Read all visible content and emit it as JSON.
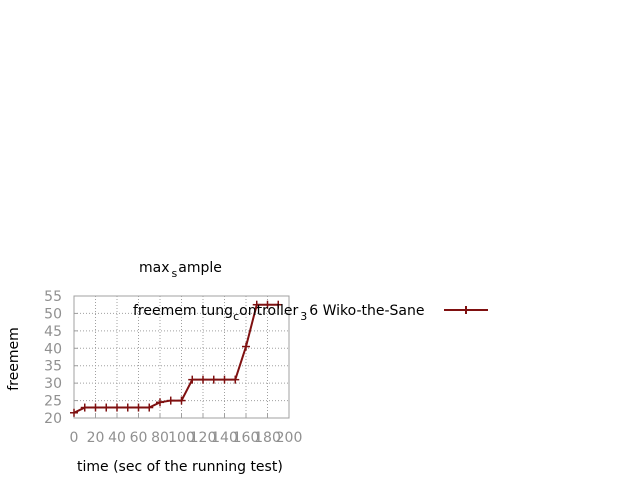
{
  "chart_data": {
    "type": "line",
    "title_main": "max",
    "title_sub": "s",
    "title_rest": "ample",
    "xlabel": "time (sec of the running test)",
    "ylabel": "freemem",
    "xlim": [
      0,
      200
    ],
    "ylim": [
      20,
      55
    ],
    "x_ticks": [
      0,
      20,
      40,
      60,
      80,
      100,
      120,
      140,
      160,
      180,
      200
    ],
    "y_ticks": [
      20,
      25,
      30,
      35,
      40,
      45,
      50,
      55
    ],
    "grid": true,
    "legend_position": "top-right",
    "legend": {
      "part1": "freemem tung",
      "sub1": "c",
      "part2": "ontroller",
      "sub2": "3",
      "part3": "6 Wiko-the-Sane"
    },
    "series": [
      {
        "color": "#7f1010",
        "x": [
          0,
          10,
          20,
          30,
          40,
          50,
          60,
          70,
          80,
          90,
          100,
          110,
          120,
          130,
          140,
          150,
          160,
          170,
          180,
          190
        ],
        "y": [
          21.5,
          23,
          23,
          23,
          23,
          23,
          23,
          23,
          24.5,
          25,
          25,
          31,
          31,
          31,
          31,
          31,
          40.5,
          52.5,
          52.5,
          52.5
        ]
      }
    ]
  }
}
